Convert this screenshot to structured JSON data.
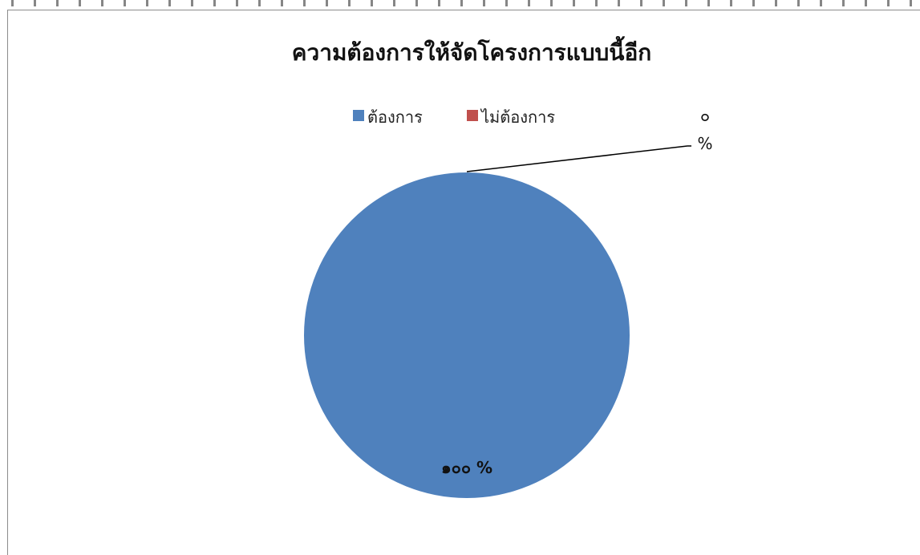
{
  "chart_data": {
    "type": "pie",
    "title": "ความต้องการให้จัดโครงการแบบนี้อีก",
    "categories": [
      "ต้องการ",
      "ไม่ต้องการ"
    ],
    "values": [
      100,
      0
    ],
    "labels": [
      "๑๐๐ %",
      "๐ %"
    ],
    "label_parts": {
      "zero_number": "๐",
      "zero_unit": "%"
    },
    "colors": [
      "#4f81bd",
      "#c0504d"
    ],
    "legend_placement": "top"
  }
}
